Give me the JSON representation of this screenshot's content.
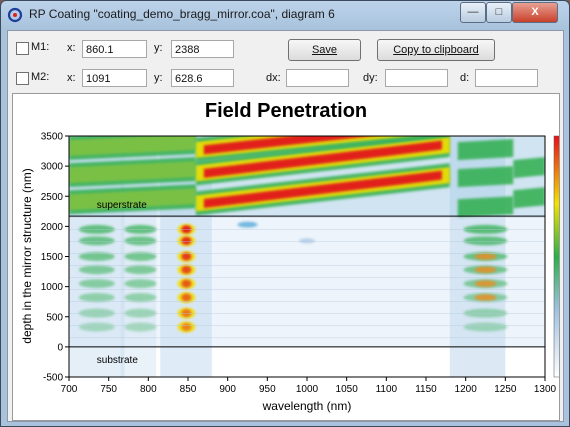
{
  "window": {
    "title": "RP Coating \"coating_demo_bragg_mirror.coa\", diagram 6",
    "min_glyph": "—",
    "max_glyph": "□",
    "close_glyph": "X"
  },
  "markers": {
    "m1": {
      "label": "M1:",
      "x_label": "x:",
      "x_value": "860.1",
      "y_label": "y:",
      "y_value": "2388"
    },
    "m2": {
      "label": "M2:",
      "x_label": "x:",
      "x_value": "1091",
      "y_label": "y:",
      "y_value": "628.6"
    },
    "dx_label": "dx:",
    "dy_label": "dy:",
    "d_label": "d:",
    "dx_value": "",
    "dy_value": "",
    "d_value": ""
  },
  "buttons": {
    "save": "Save",
    "copy": "Copy to clipboard"
  },
  "chart_data": {
    "type": "heatmap",
    "title": "Field Penetration",
    "xlabel": "wavelength (nm)",
    "ylabel": "depth in the mirror structure (nm)",
    "xlim": [
      700,
      1300
    ],
    "ylim": [
      -500,
      3500
    ],
    "x_ticks": [
      700,
      750,
      800,
      850,
      900,
      950,
      1000,
      1050,
      1100,
      1150,
      1200,
      1250,
      1300
    ],
    "y_ticks": [
      -500,
      0,
      500,
      1000,
      1500,
      2000,
      2500,
      3000,
      3500
    ],
    "annotations": [
      "superstrate",
      "substrate"
    ],
    "layer_boundaries": [
      0,
      2170
    ],
    "colorbar_colors": [
      "#ffffff",
      "#9ec1e2",
      "#2ab04a",
      "#f2e200",
      "#e8101a"
    ]
  }
}
